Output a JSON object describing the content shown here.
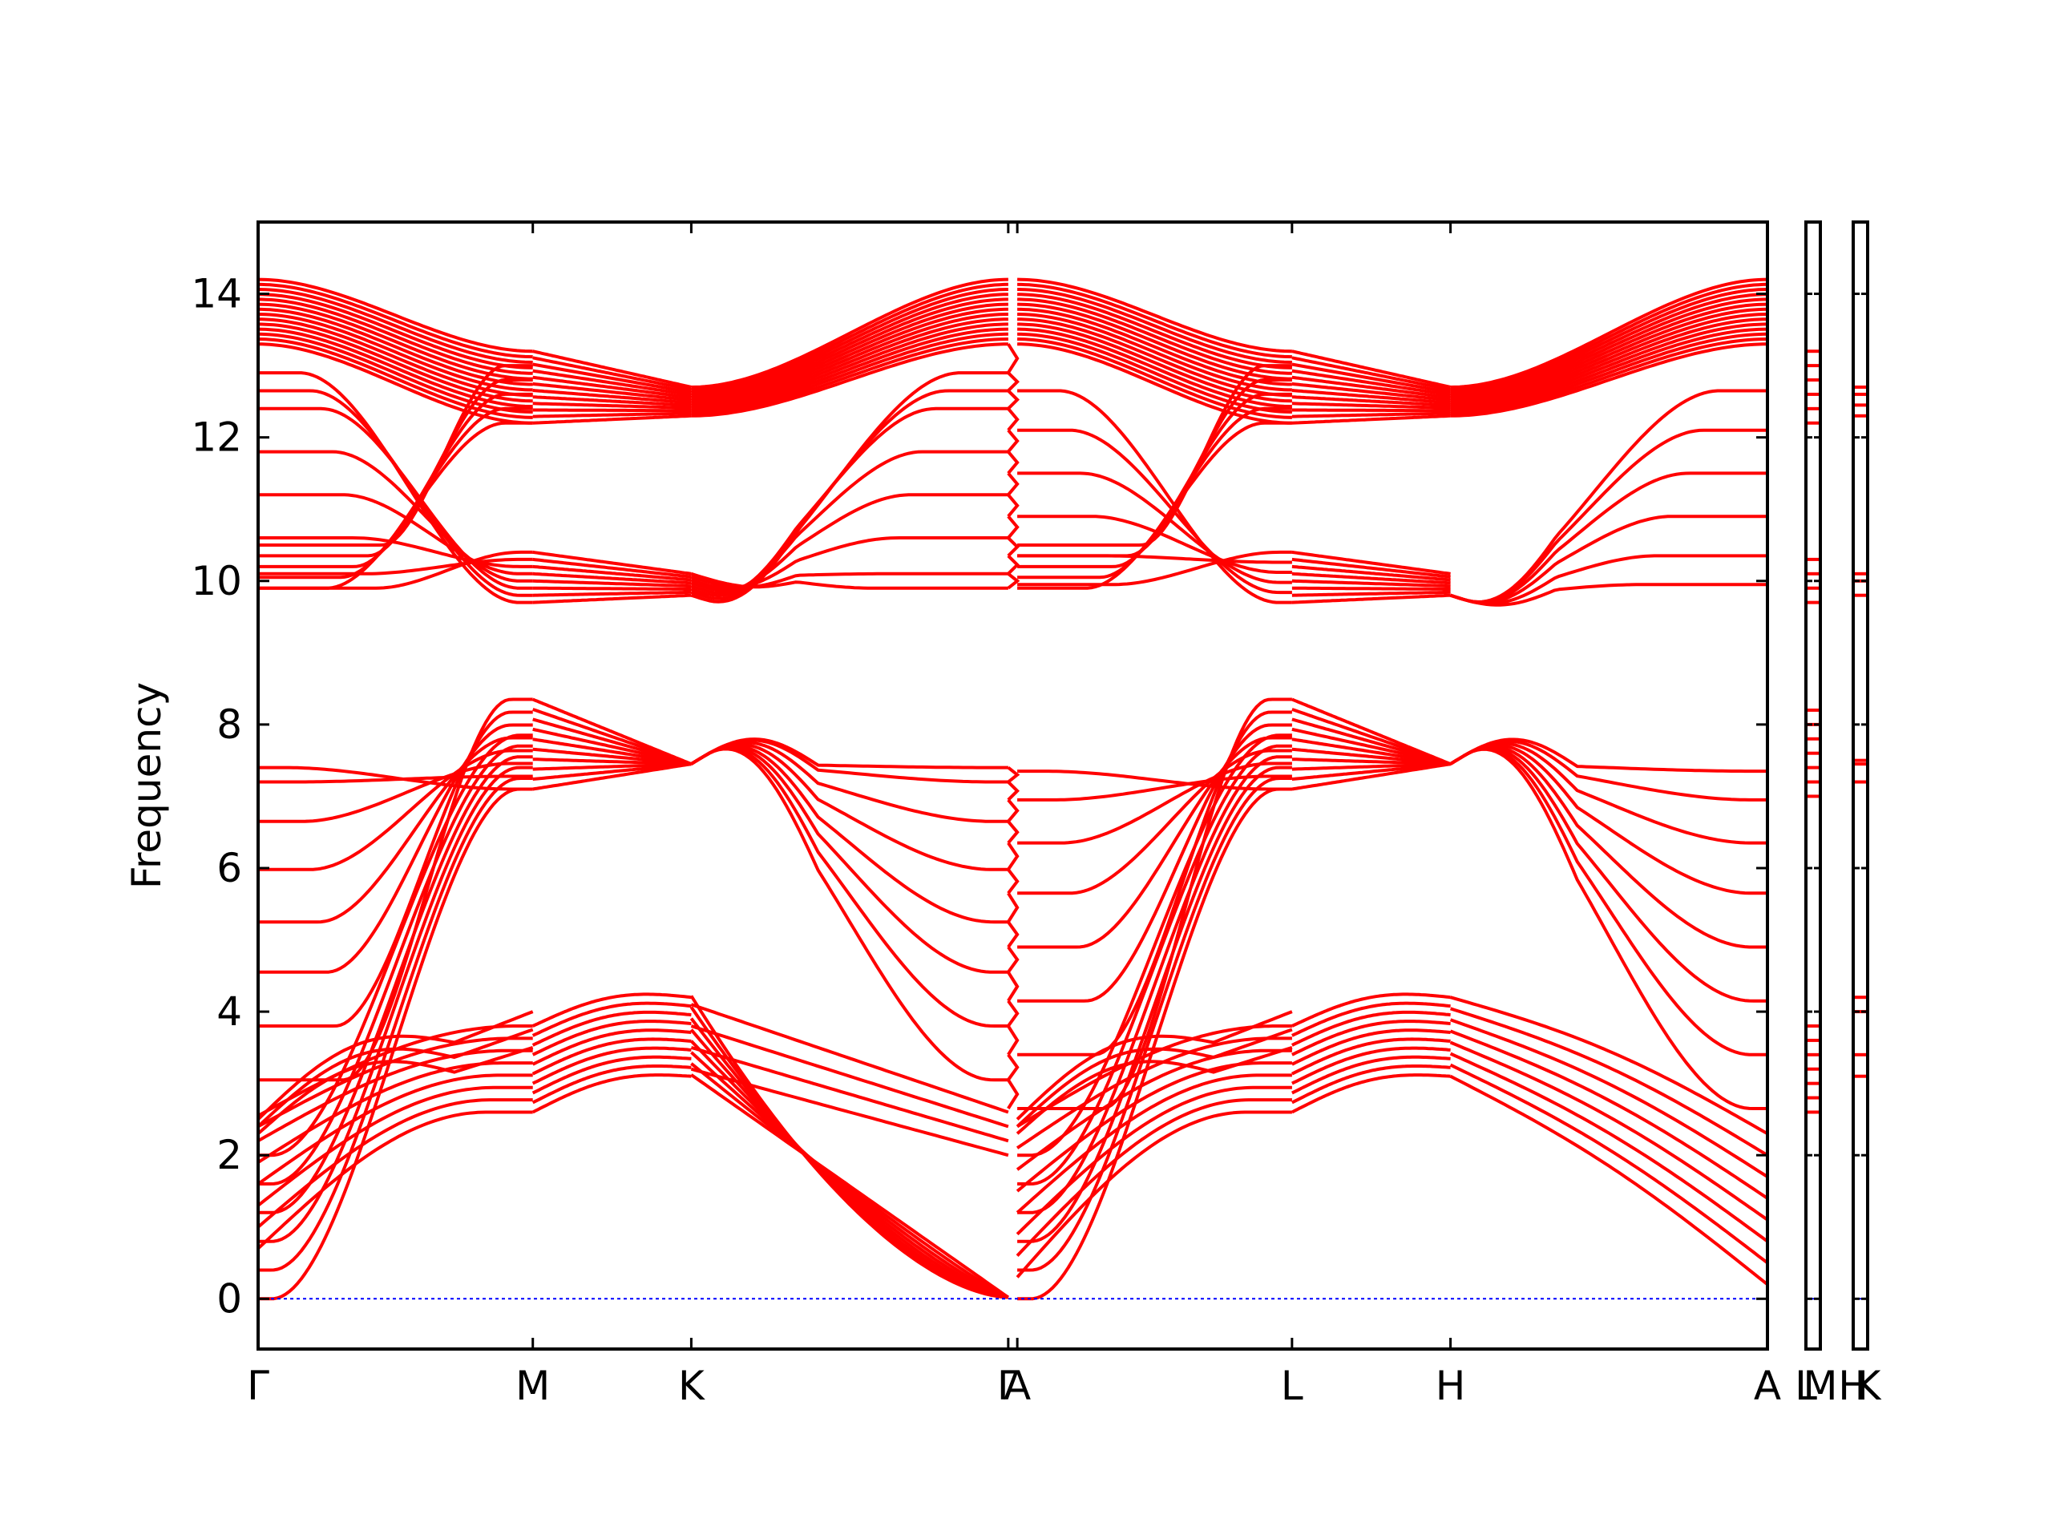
{
  "chart_data": {
    "type": "line",
    "title": "",
    "xlabel": "",
    "ylabel": "Frequency",
    "ylim": [
      -0.7,
      15.0
    ],
    "yticks": [
      0,
      2,
      4,
      6,
      8,
      10,
      12,
      14
    ],
    "xlim": [
      0,
      1
    ],
    "grid": false,
    "colors": {
      "bands": "#ff0000",
      "zero_line": "#0000ff",
      "frame": "#000000"
    },
    "segments": [
      {
        "from": "Γ",
        "to": "M",
        "start": 0.0,
        "end": 0.182
      },
      {
        "from": "M",
        "to": "K",
        "start": 0.182,
        "end": 0.287
      },
      {
        "from": "K",
        "to": "Γ",
        "start": 0.287,
        "end": 0.497
      },
      {
        "from": "A",
        "to": "L",
        "start": 0.503,
        "end": 0.685
      },
      {
        "from": "L",
        "to": "H",
        "start": 0.685,
        "end": 0.79
      },
      {
        "from": "H",
        "to": "A",
        "start": 0.79,
        "end": 1.0
      }
    ],
    "xticks": [
      {
        "label": "Γ",
        "position": 0.0
      },
      {
        "label": "M",
        "position": 0.182
      },
      {
        "label": "K",
        "position": 0.287
      },
      {
        "label": "Γ",
        "position": 0.497
      },
      {
        "label": "A",
        "position": 0.503
      },
      {
        "label": "L",
        "position": 0.685
      },
      {
        "label": "H",
        "position": 0.79
      },
      {
        "label": "A",
        "position": 1.0
      }
    ],
    "side_panel_ticks": [
      {
        "panel": 1,
        "labels": [
          "L",
          "M"
        ]
      },
      {
        "panel": 2,
        "labels": [
          "H",
          "K"
        ]
      }
    ],
    "bands": {
      "flat_gamma_optical": [
        7.4,
        7.2,
        6.65,
        5.98,
        5.25,
        4.55,
        3.8,
        3.05
      ],
      "flat_a_optical": [
        7.35,
        6.95,
        6.35,
        5.65,
        4.9,
        4.15,
        3.4,
        2.65
      ],
      "gamma_upper_flat": [
        12.9,
        12.65,
        12.4,
        11.8,
        11.2,
        10.6,
        10.1,
        9.9
      ],
      "a_upper_flat": [
        12.65,
        12.1,
        11.5,
        10.9,
        10.35,
        9.95
      ],
      "top_block": {
        "gamma": [
          13.3,
          14.2
        ],
        "m": [
          12.2,
          13.2
        ],
        "k": [
          12.3,
          12.7
        ]
      },
      "lower_block": {
        "gamma": [
          0.0,
          2.6
        ],
        "m": [
          2.6,
          3.8
        ],
        "k": [
          3.1,
          4.2
        ]
      },
      "mid_block": {
        "m": [
          7.1,
          8.35
        ],
        "k": [
          7.4,
          7.5
        ],
        "peak": 7.8
      },
      "upper_mid_block": {
        "m": [
          9.7,
          10.4
        ],
        "k": [
          9.8,
          10.1
        ]
      }
    },
    "side_panel_1_levels": [
      2.6,
      2.8,
      3.0,
      3.2,
      3.4,
      3.6,
      3.8,
      7.0,
      7.2,
      7.4,
      7.6,
      7.8,
      8.0,
      8.2,
      9.7,
      9.9,
      10.1,
      10.3,
      12.2,
      12.4,
      12.6,
      12.8,
      13.0,
      13.2
    ],
    "side_panel_2_levels": [
      3.1,
      3.4,
      4.0,
      4.2,
      7.2,
      7.45,
      7.5,
      9.8,
      10.0,
      10.1,
      12.3,
      12.45,
      12.6,
      12.7
    ]
  }
}
